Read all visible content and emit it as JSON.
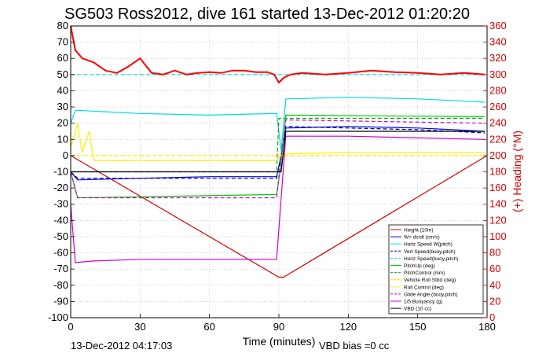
{
  "chart_data": {
    "type": "line",
    "title": "SG503 Ross2012, dive 161 started 13-Dec-2012 01:20:20",
    "xlabel": "Time (minutes)",
    "ylabel_right": "(+) Heading (°M)",
    "xlim": [
      0,
      180
    ],
    "ylim": [
      -100,
      80
    ],
    "ylim_right": [
      0,
      360
    ],
    "x_ticks": [
      "0",
      "30",
      "60",
      "90",
      "120",
      "150",
      "180"
    ],
    "y_ticks": [
      "-100",
      "-90",
      "-80",
      "-70",
      "-60",
      "-50",
      "-40",
      "-30",
      "-20",
      "-10",
      "0",
      "10",
      "20",
      "30",
      "40",
      "50",
      "60",
      "70",
      "80"
    ],
    "y_ticks_right": [
      "0",
      "20",
      "40",
      "60",
      "80",
      "100",
      "120",
      "140",
      "160",
      "180",
      "200",
      "220",
      "240",
      "260",
      "280",
      "300",
      "320",
      "340",
      "360"
    ],
    "footer_left": "13-Dec-2012 04:17:03",
    "footer_right": "VBD bias =0 cc",
    "grid": true,
    "legend_position": "bottom-right",
    "series": [
      {
        "name": "Height (10m)",
        "color": "#d40000",
        "style": "solid",
        "x": [
          0,
          90,
          92,
          180
        ],
        "y": [
          0,
          -75,
          -75,
          0
        ]
      },
      {
        "name": "W= dz/dt (cm/s)",
        "color": "#0000ff",
        "style": "solid",
        "x": [
          0,
          3,
          30,
          60,
          89,
          91,
          93,
          120,
          150,
          165,
          179
        ],
        "y": [
          -10,
          -15,
          -14,
          -13,
          -13,
          0,
          17,
          18,
          17,
          16,
          15
        ]
      },
      {
        "name": "Horiz Speed W(pitch)",
        "color": "#00dddd",
        "style": "solid",
        "x": [
          0,
          2,
          30,
          60,
          89,
          91,
          93,
          120,
          150,
          165,
          179
        ],
        "y": [
          20,
          28,
          26,
          25,
          26,
          3,
          35,
          36,
          35,
          34,
          33
        ]
      },
      {
        "name": "Vert Speed(buoy,pitch)",
        "color": "#00008b",
        "style": "dashed",
        "x": [
          0,
          3,
          89,
          91,
          93,
          120,
          150,
          179
        ],
        "y": [
          -10,
          -14,
          -14,
          0,
          18,
          17,
          16,
          14
        ]
      },
      {
        "name": "Horiz Speed(buoy,pitch)",
        "color": "#00dddd",
        "style": "dashed",
        "x": [
          0,
          3,
          89,
          90,
          179
        ],
        "y": [
          50,
          50,
          50,
          50,
          50
        ]
      },
      {
        "name": "PitchUp (deg)",
        "color": "#00cc00",
        "style": "solid",
        "x": [
          0,
          3,
          89,
          91,
          93,
          179
        ],
        "y": [
          -10,
          -26,
          -24,
          -5,
          25,
          24
        ]
      },
      {
        "name": "PitchControl (mm)",
        "color": "#00aa00",
        "style": "dashed",
        "x": [
          0,
          3,
          89,
          90,
          179
        ],
        "y": [
          -10,
          -10,
          -10,
          23,
          23
        ]
      },
      {
        "name": "Vehicle Roll Stbd (deg)",
        "color": "#ffee00",
        "style": "solid",
        "x": [
          0,
          3,
          5,
          8,
          10,
          30,
          89,
          91,
          93,
          120,
          179
        ],
        "y": [
          5,
          20,
          2,
          15,
          -3,
          -3,
          -3,
          0,
          1,
          2,
          2
        ]
      },
      {
        "name": "Roll Control (deg)",
        "color": "#ffee00",
        "style": "dashed",
        "x": [
          0,
          3,
          89,
          90,
          179
        ],
        "y": [
          0,
          0,
          0,
          0,
          0
        ]
      },
      {
        "name": "Glide Angle (buoy,pitch)",
        "color": "#cc00cc",
        "style": "dashed",
        "x": [
          0,
          3,
          89,
          91,
          93,
          179
        ],
        "y": [
          -10,
          -26,
          -26,
          0,
          22,
          20
        ]
      },
      {
        "name": "1/5 Buoyancy (g)",
        "color": "#cc00cc",
        "style": "solid",
        "x": [
          0,
          2,
          10,
          30,
          60,
          89,
          93,
          120,
          179
        ],
        "y": [
          -30,
          -66,
          -65,
          -64,
          -64,
          -64,
          12,
          12,
          10
        ]
      },
      {
        "name": "VBD (10 cc)",
        "color": "#000000",
        "style": "solid",
        "x": [
          0,
          89,
          91,
          93,
          179
        ],
        "y": [
          -10,
          -10,
          -10,
          15,
          15
        ]
      },
      {
        "name": "",
        "axis": "right",
        "color": "#ff0000",
        "style": "solid",
        "x": [
          0,
          2,
          5,
          10,
          15,
          20,
          25,
          30,
          35,
          40,
          45,
          50,
          55,
          60,
          65,
          70,
          75,
          80,
          85,
          88,
          90,
          92,
          95,
          100,
          110,
          120,
          130,
          140,
          150,
          160,
          170,
          179
        ],
        "y": [
          360,
          330,
          320,
          315,
          305,
          302,
          310,
          320,
          302,
          300,
          305,
          300,
          302,
          303,
          302,
          305,
          305,
          303,
          303,
          300,
          290,
          296,
          300,
          302,
          300,
          302,
          305,
          303,
          302,
          300,
          302,
          300
        ]
      }
    ]
  }
}
